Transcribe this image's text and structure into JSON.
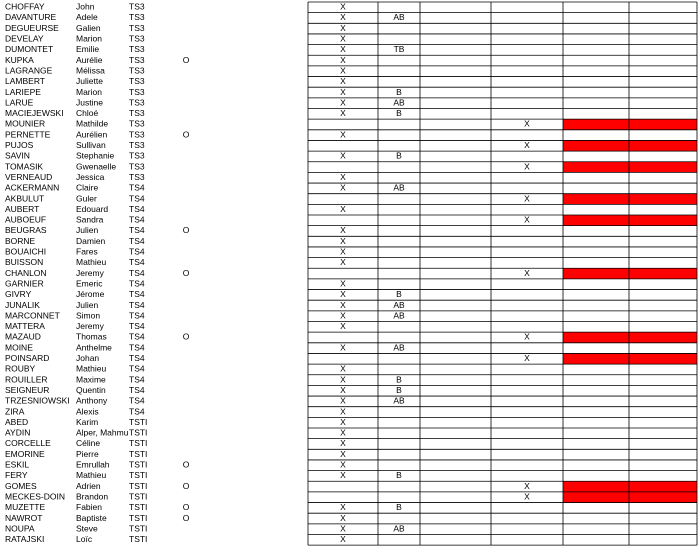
{
  "table": {
    "rows": [
      {
        "cells": [
          "CHOFFAY",
          "John",
          "TS3",
          null,
          "X",
          null,
          null,
          null,
          null,
          null
        ]
      },
      {
        "cells": [
          "DAVANTURE",
          "Adele",
          "TS3",
          null,
          "X",
          "AB",
          null,
          null,
          null,
          null
        ]
      },
      {
        "cells": [
          "DEGUEURSE",
          "Galien",
          "TS3",
          null,
          "X",
          null,
          null,
          null,
          null,
          null
        ]
      },
      {
        "cells": [
          "DEVELAY",
          "Marion",
          "TS3",
          null,
          "X",
          null,
          null,
          null,
          null,
          null
        ]
      },
      {
        "cells": [
          "DUMONTET",
          "Emilie",
          "TS3",
          null,
          "X",
          "TB",
          null,
          null,
          null,
          null
        ]
      },
      {
        "cells": [
          "KUPKA",
          "Aurélie",
          "TS3",
          "O",
          "X",
          null,
          null,
          null,
          null,
          null
        ]
      },
      {
        "cells": [
          "LAGRANGE",
          "Mélissa",
          "TS3",
          null,
          "X",
          null,
          null,
          null,
          null,
          null
        ]
      },
      {
        "cells": [
          "LAMBERT",
          "Juliette",
          "TS3",
          null,
          "X",
          null,
          null,
          null,
          null,
          null
        ]
      },
      {
        "cells": [
          "LARIEPE",
          "Marion",
          "TS3",
          null,
          "X",
          "B",
          null,
          null,
          null,
          null
        ]
      },
      {
        "cells": [
          "LARUE",
          "Justine",
          "TS3",
          null,
          "X",
          "AB",
          null,
          null,
          null,
          null
        ]
      },
      {
        "cells": [
          "MACIEJEWSKI",
          "Chloé",
          "TS3",
          null,
          "X",
          "B",
          null,
          null,
          null,
          null
        ]
      },
      {
        "cells": [
          "MOUNIER",
          "Mathilde",
          "TS3",
          null,
          null,
          null,
          null,
          "X",
          null,
          null
        ],
        "highlight": true
      },
      {
        "cells": [
          "PERNETTE",
          "Aurélien",
          "TS3",
          "O",
          "X",
          null,
          null,
          null,
          null,
          null
        ]
      },
      {
        "cells": [
          "PUJOS",
          "Sullivan",
          "TS3",
          null,
          null,
          null,
          null,
          "X",
          null,
          null
        ],
        "highlight": true
      },
      {
        "cells": [
          "SAVIN",
          "Stephanie",
          "TS3",
          null,
          "X",
          "B",
          null,
          null,
          null,
          null
        ]
      },
      {
        "cells": [
          "TOMASIK",
          "Gwenaelle",
          "TS3",
          null,
          null,
          null,
          null,
          "X",
          null,
          null
        ],
        "highlight": true
      },
      {
        "cells": [
          "VERNEAUD",
          "Jessica",
          "TS3",
          null,
          "X",
          null,
          null,
          null,
          null,
          null
        ]
      },
      {
        "cells": [
          "ACKERMANN",
          "Claire",
          "TS4",
          null,
          "X",
          "AB",
          null,
          null,
          null,
          null
        ]
      },
      {
        "cells": [
          "AKBULUT",
          "Guler",
          "TS4",
          null,
          null,
          null,
          null,
          "X",
          null,
          null
        ],
        "highlight": true
      },
      {
        "cells": [
          "AUBERT",
          "Edouard",
          "TS4",
          null,
          "X",
          null,
          null,
          null,
          null,
          null
        ]
      },
      {
        "cells": [
          "AUBOEUF",
          "Sandra",
          "TS4",
          null,
          null,
          null,
          null,
          "X",
          null,
          null
        ],
        "highlight": true
      },
      {
        "cells": [
          "BEUGRAS",
          "Julien",
          "TS4",
          "O",
          "X",
          null,
          null,
          null,
          null,
          null
        ]
      },
      {
        "cells": [
          "BORNE",
          "Damien",
          "TS4",
          null,
          "X",
          null,
          null,
          null,
          null,
          null
        ]
      },
      {
        "cells": [
          "BOUAICHI",
          "Fares",
          "TS4",
          null,
          "X",
          null,
          null,
          null,
          null,
          null
        ]
      },
      {
        "cells": [
          "BUISSON",
          "Mathieu",
          "TS4",
          null,
          "X",
          null,
          null,
          null,
          null,
          null
        ]
      },
      {
        "cells": [
          "CHANLON",
          "Jeremy",
          "TS4",
          "O",
          null,
          null,
          null,
          "X",
          null,
          null
        ],
        "highlight": true
      },
      {
        "cells": [
          "GARNIER",
          "Emeric",
          "TS4",
          null,
          "X",
          null,
          null,
          null,
          null,
          null
        ]
      },
      {
        "cells": [
          "GIVRY",
          "Jérome",
          "TS4",
          null,
          "X",
          "B",
          null,
          null,
          null,
          null
        ]
      },
      {
        "cells": [
          "JUNALIK",
          "Julien",
          "TS4",
          null,
          "X",
          "AB",
          null,
          null,
          null,
          null
        ]
      },
      {
        "cells": [
          "MARCONNET",
          "Simon",
          "TS4",
          null,
          "X",
          "AB",
          null,
          null,
          null,
          null
        ]
      },
      {
        "cells": [
          "MATTERA",
          "Jeremy",
          "TS4",
          null,
          "X",
          null,
          null,
          null,
          null,
          null
        ]
      },
      {
        "cells": [
          "MAZAUD",
          "Thomas",
          "TS4",
          "O",
          null,
          null,
          null,
          "X",
          null,
          null
        ],
        "highlight": true
      },
      {
        "cells": [
          "MOINE",
          "Anthelme",
          "TS4",
          null,
          "X",
          "AB",
          null,
          null,
          null,
          null
        ]
      },
      {
        "cells": [
          "POINSARD",
          "Johan",
          "TS4",
          null,
          null,
          null,
          null,
          "X",
          null,
          null
        ],
        "highlight": true
      },
      {
        "cells": [
          "ROUBY",
          "Mathieu",
          "TS4",
          null,
          "X",
          null,
          null,
          null,
          null,
          null
        ]
      },
      {
        "cells": [
          "ROUILLER",
          "Maxime",
          "TS4",
          null,
          "X",
          "B",
          null,
          null,
          null,
          null
        ]
      },
      {
        "cells": [
          "SEIGNEUR",
          "Quentin",
          "TS4",
          null,
          "X",
          "B",
          null,
          null,
          null,
          null
        ]
      },
      {
        "cells": [
          "TRZESNIOWSKI",
          "Anthony",
          "TS4",
          null,
          "X",
          "AB",
          null,
          null,
          null,
          null
        ]
      },
      {
        "cells": [
          "ZIRA",
          "Alexis",
          "TS4",
          null,
          "X",
          null,
          null,
          null,
          null,
          null
        ]
      },
      {
        "cells": [
          "ABED",
          "Karim",
          "TSTI",
          null,
          "X",
          null,
          null,
          null,
          null,
          null
        ]
      },
      {
        "cells": [
          "AYDIN",
          "Alper, Mahmu",
          "TSTI",
          null,
          "X",
          null,
          null,
          null,
          null,
          null
        ]
      },
      {
        "cells": [
          "CORCELLE",
          "Céline",
          "TSTI",
          null,
          "X",
          null,
          null,
          null,
          null,
          null
        ]
      },
      {
        "cells": [
          "EMORINE",
          "Pierre",
          "TSTI",
          null,
          "X",
          null,
          null,
          null,
          null,
          null
        ]
      },
      {
        "cells": [
          "ESKIL",
          "Emrullah",
          "TSTI",
          "O",
          "X",
          null,
          null,
          null,
          null,
          null
        ]
      },
      {
        "cells": [
          "FERY",
          "Mathieu",
          "TSTI",
          null,
          "X",
          "B",
          null,
          null,
          null,
          null
        ]
      },
      {
        "cells": [
          "GOMES",
          "Adrien",
          "TSTI",
          "O",
          null,
          null,
          null,
          "X",
          null,
          null
        ],
        "highlight": true
      },
      {
        "cells": [
          "MECKES-DOIN",
          "Brandon",
          "TSTI",
          null,
          null,
          null,
          null,
          "X",
          null,
          null
        ],
        "highlight": true
      },
      {
        "cells": [
          "MUZETTE",
          "Fabien",
          "TSTI",
          "O",
          "X",
          "B",
          null,
          null,
          null,
          null
        ]
      },
      {
        "cells": [
          "NAWROT",
          "Baptiste",
          "TSTI",
          "O",
          "X",
          null,
          null,
          null,
          null,
          null
        ]
      },
      {
        "cells": [
          "NOUPA",
          "Steve",
          "TSTI",
          null,
          "X",
          "AB",
          null,
          null,
          null,
          null
        ]
      },
      {
        "cells": [
          "RATAJSKI",
          "Loïc",
          "TSTI",
          null,
          "X",
          null,
          null,
          null,
          null,
          null
        ]
      }
    ]
  }
}
